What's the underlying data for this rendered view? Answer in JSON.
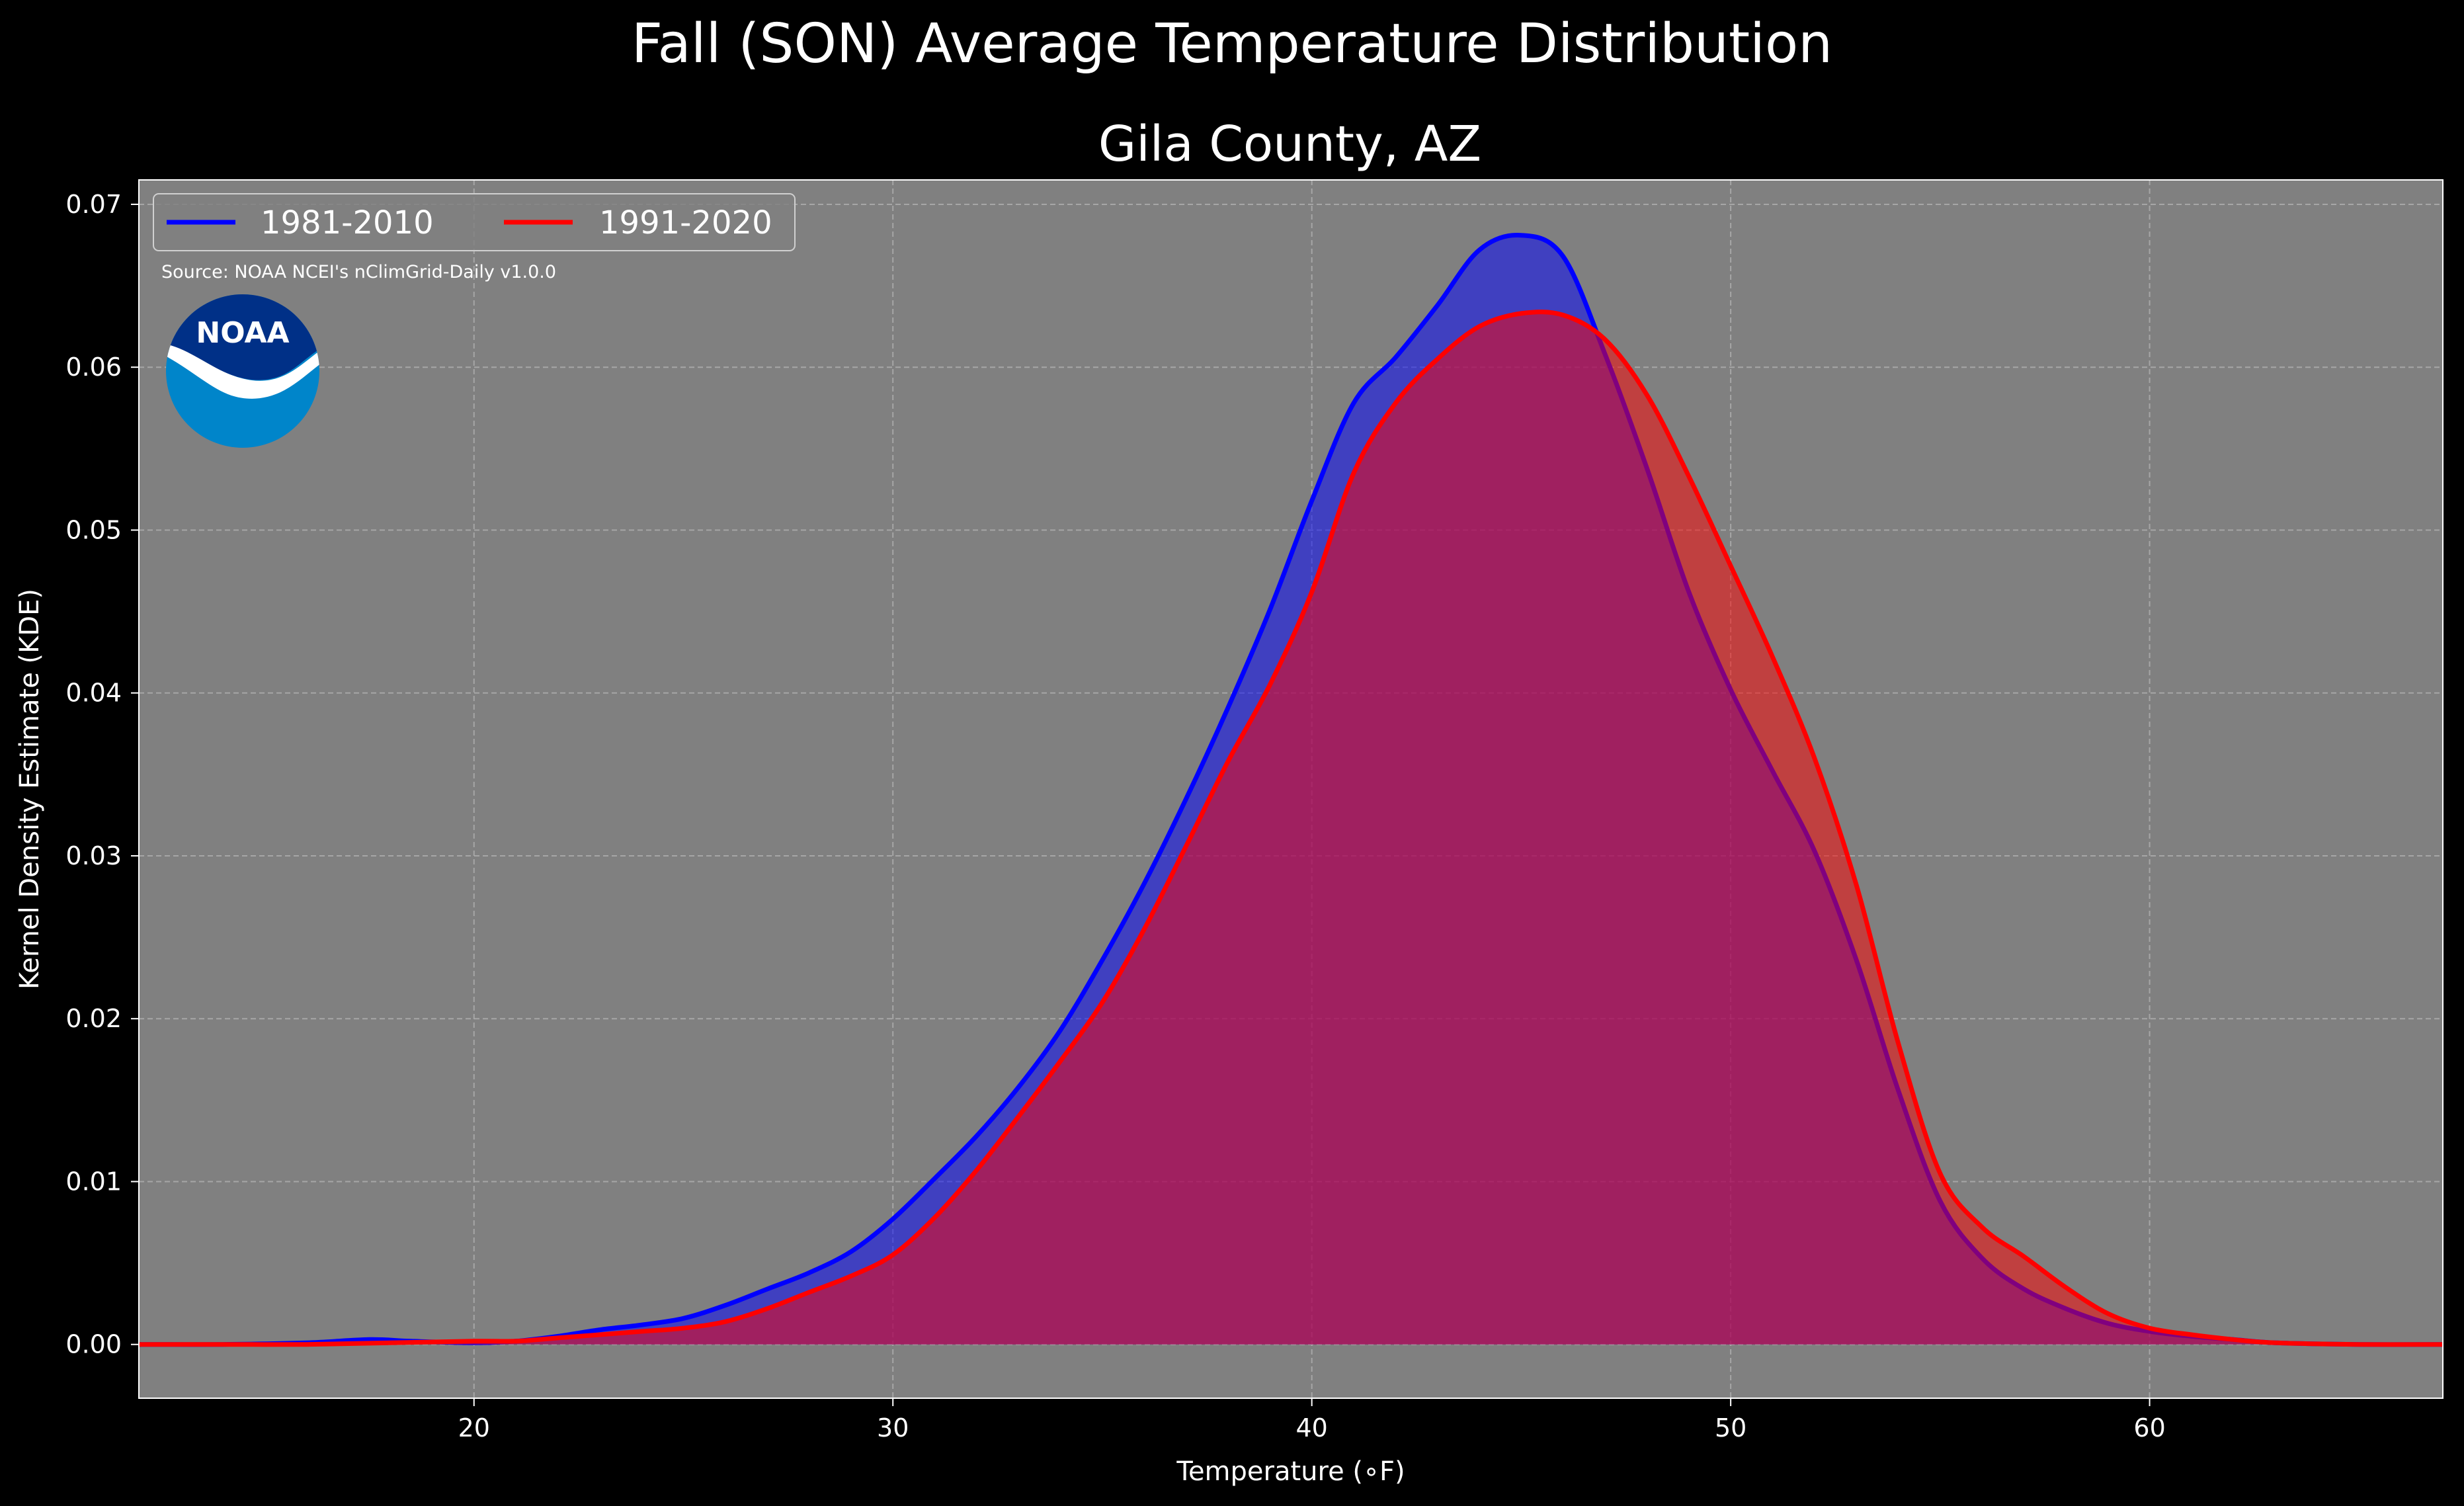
{
  "header": {
    "title": "Fall (SON) Average Temperature Distribution",
    "subtitle": "Gila County, AZ"
  },
  "annotations": {
    "source": "Source: NOAA NCEI's nClimGrid-Daily v1.0.0",
    "logo_text": "NOAA"
  },
  "colors": {
    "background": "#000000",
    "plot_background": "#808080",
    "grid": "#b0b0b0",
    "series_1981": "#0000ff",
    "series_1991": "#ff0000",
    "logo_outer": "#0085ca",
    "logo_top": "#003087"
  },
  "chart_data": {
    "type": "area",
    "title": "Fall (SON) Average Temperature Distribution",
    "subtitle": "Gila County, AZ",
    "xlabel": "Temperature ($^\\circ$F)",
    "xlabel_display": "Temperature (∘F)",
    "ylabel": "Kernel Density Estimate (KDE)",
    "xlim": [
      12,
      67
    ],
    "ylim": [
      -0.0033,
      0.0715
    ],
    "xticks": [
      20,
      30,
      40,
      50,
      60
    ],
    "yticks": [
      0.0,
      0.01,
      0.02,
      0.03,
      0.04,
      0.05,
      0.06,
      0.07
    ],
    "ytick_labels": [
      "0.00",
      "0.01",
      "0.02",
      "0.03",
      "0.04",
      "0.05",
      "0.06",
      "0.07"
    ],
    "grid": true,
    "legend_position": "top-left",
    "series": [
      {
        "name": "1981-2010",
        "color": "#0000ff",
        "x": [
          12,
          14,
          16,
          17.5,
          18.5,
          20,
          21,
          22,
          23,
          24,
          25,
          26,
          27,
          28,
          29,
          30,
          31,
          32,
          33,
          34,
          35,
          36,
          37,
          38,
          39,
          40,
          41,
          42,
          43,
          44,
          45,
          46,
          47,
          48,
          49,
          50,
          51,
          52,
          53,
          54,
          55,
          56,
          57,
          58,
          59,
          60,
          61,
          62,
          63,
          65,
          67
        ],
        "y": [
          0.0,
          0.0,
          0.0001,
          0.0003,
          0.0002,
          0.0001,
          0.0002,
          0.0005,
          0.0009,
          0.0012,
          0.0016,
          0.0024,
          0.0034,
          0.0044,
          0.0057,
          0.0077,
          0.0102,
          0.0128,
          0.0158,
          0.0193,
          0.0236,
          0.0283,
          0.0335,
          0.0391,
          0.0451,
          0.0518,
          0.0578,
          0.0606,
          0.0638,
          0.0672,
          0.0681,
          0.0668,
          0.0608,
          0.0538,
          0.0462,
          0.0402,
          0.0352,
          0.0303,
          0.0236,
          0.0156,
          0.0088,
          0.0053,
          0.0034,
          0.0022,
          0.0013,
          0.0008,
          0.0005,
          0.0003,
          0.0001,
          0.0,
          0.0
        ]
      },
      {
        "name": "1991-2020",
        "color": "#ff0000",
        "x": [
          12,
          14,
          16,
          18,
          20,
          21,
          22,
          23,
          24,
          25,
          26,
          27,
          28,
          29,
          30,
          31,
          32,
          33,
          34,
          35,
          36,
          37,
          38,
          39,
          40,
          41,
          42,
          43,
          44,
          45,
          46,
          47,
          48,
          49,
          50,
          51,
          52,
          53,
          54,
          55,
          56,
          57,
          58,
          59,
          60,
          61,
          62,
          63,
          65,
          67
        ],
        "y": [
          0.0,
          0.0,
          0.0,
          0.0001,
          0.0002,
          0.0002,
          0.0004,
          0.0006,
          0.0008,
          0.001,
          0.0014,
          0.0022,
          0.0032,
          0.0042,
          0.0055,
          0.0078,
          0.0107,
          0.014,
          0.0174,
          0.021,
          0.0255,
          0.0306,
          0.0358,
          0.0405,
          0.0462,
          0.0535,
          0.0578,
          0.0605,
          0.0625,
          0.0633,
          0.0632,
          0.0617,
          0.0583,
          0.0533,
          0.0478,
          0.0422,
          0.036,
          0.0282,
          0.0185,
          0.0105,
          0.0072,
          0.0054,
          0.0035,
          0.0019,
          0.001,
          0.0006,
          0.0003,
          0.0001,
          0.0,
          0.0
        ]
      }
    ]
  }
}
